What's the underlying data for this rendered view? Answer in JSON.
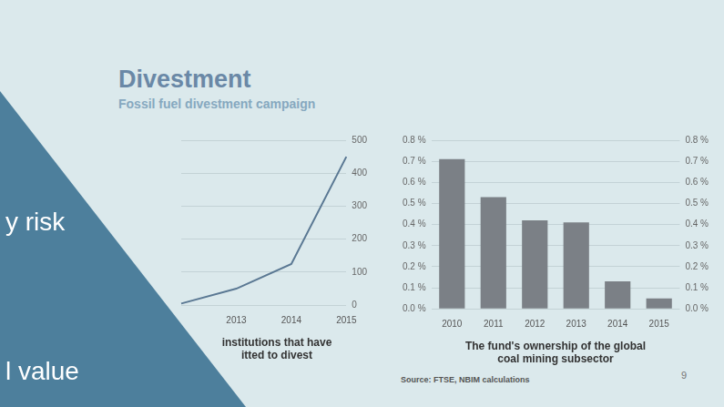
{
  "slide": {
    "title": "Divestment",
    "subtitle": "Fossil fuel divestment campaign",
    "source": "Source: FTSE, NBIM calculations",
    "page": "9",
    "overlay": [
      "y risk",
      "l value"
    ]
  },
  "chart_data": [
    {
      "type": "line",
      "title": [
        "institutions that have",
        "itted to divest"
      ],
      "categories": [
        null,
        "2013",
        "2014",
        "2015"
      ],
      "values": [
        5,
        50,
        125,
        450
      ],
      "color": "#5a7893",
      "marker": "none",
      "ylim": [
        0,
        500
      ],
      "yticks": [
        0,
        100,
        200,
        300,
        400,
        500
      ],
      "grid": true
    },
    {
      "type": "bar",
      "title": [
        "The fund's ownership of the global",
        "coal mining subsector"
      ],
      "categories": [
        "2010",
        "2011",
        "2012",
        "2013",
        "2014",
        "2015"
      ],
      "values": [
        0.71,
        0.53,
        0.42,
        0.41,
        0.13,
        0.05
      ],
      "color": "#7b8086",
      "ylim": [
        0,
        0.8
      ],
      "yticks": [
        {
          "value": 0,
          "label": "0.0 %"
        },
        {
          "value": 0.1,
          "label": "0.1 %"
        },
        {
          "value": 0.2,
          "label": "0.2 %"
        },
        {
          "value": 0.3,
          "label": "0.3 %"
        },
        {
          "value": 0.4,
          "label": "0.4 %"
        },
        {
          "value": 0.5,
          "label": "0.5 %"
        },
        {
          "value": 0.6,
          "label": "0.6 %"
        },
        {
          "value": 0.7,
          "label": "0.7 %"
        },
        {
          "value": 0.8,
          "label": "0.8 %"
        }
      ],
      "grid": true
    }
  ]
}
